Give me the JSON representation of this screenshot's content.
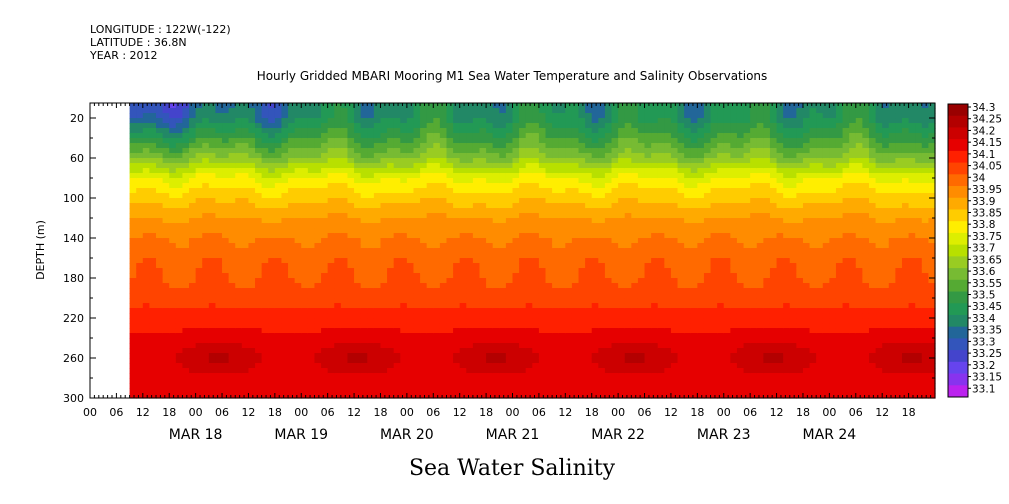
{
  "header": {
    "longitude": "LONGITUDE : 122W(-122)",
    "latitude": "LATITUDE : 36.8N",
    "year": "YEAR : 2012"
  },
  "chart_data": {
    "type": "heatmap",
    "title": "Hourly Gridded MBARI Mooring M1 Sea Water Temperature and Salinity Observations",
    "subtitle": "Sea Water Salinity",
    "ylabel": "DEPTH (m)",
    "xlabel": "",
    "x_range_hours": [
      -24,
      168
    ],
    "data_start_hour": -15,
    "y_range": [
      5,
      300
    ],
    "y_inverted": true,
    "y_ticks": [
      20,
      60,
      100,
      140,
      180,
      220,
      260,
      300
    ],
    "x_hour_ticks": [
      {
        "hour": -24,
        "label": "00"
      },
      {
        "hour": -18,
        "label": "06"
      },
      {
        "hour": -12,
        "label": "12"
      },
      {
        "hour": -6,
        "label": "18"
      },
      {
        "hour": 0,
        "label": "00"
      },
      {
        "hour": 6,
        "label": "06"
      },
      {
        "hour": 12,
        "label": "12"
      },
      {
        "hour": 18,
        "label": "18"
      },
      {
        "hour": 24,
        "label": "00"
      },
      {
        "hour": 30,
        "label": "06"
      },
      {
        "hour": 36,
        "label": "12"
      },
      {
        "hour": 42,
        "label": "18"
      },
      {
        "hour": 48,
        "label": "00"
      },
      {
        "hour": 54,
        "label": "06"
      },
      {
        "hour": 60,
        "label": "12"
      },
      {
        "hour": 66,
        "label": "18"
      },
      {
        "hour": 72,
        "label": "00"
      },
      {
        "hour": 78,
        "label": "06"
      },
      {
        "hour": 84,
        "label": "12"
      },
      {
        "hour": 90,
        "label": "18"
      },
      {
        "hour": 96,
        "label": "00"
      },
      {
        "hour": 102,
        "label": "06"
      },
      {
        "hour": 108,
        "label": "12"
      },
      {
        "hour": 114,
        "label": "18"
      },
      {
        "hour": 120,
        "label": "00"
      },
      {
        "hour": 126,
        "label": "06"
      },
      {
        "hour": 132,
        "label": "12"
      },
      {
        "hour": 138,
        "label": "18"
      },
      {
        "hour": 144,
        "label": "00"
      },
      {
        "hour": 150,
        "label": "06"
      },
      {
        "hour": 156,
        "label": "12"
      },
      {
        "hour": 162,
        "label": "18"
      }
    ],
    "day_labels": [
      {
        "hour": 0,
        "label": "MAR 18"
      },
      {
        "hour": 24,
        "label": "MAR 19"
      },
      {
        "hour": 48,
        "label": "MAR 20"
      },
      {
        "hour": 72,
        "label": "MAR 21"
      },
      {
        "hour": 96,
        "label": "MAR 22"
      },
      {
        "hour": 120,
        "label": "MAR 23"
      },
      {
        "hour": 144,
        "label": "MAR 24"
      }
    ],
    "depth_profile": [
      {
        "depth": 5,
        "value": 33.45
      },
      {
        "depth": 20,
        "value": 33.46
      },
      {
        "depth": 40,
        "value": 33.55
      },
      {
        "depth": 60,
        "value": 33.65
      },
      {
        "depth": 80,
        "value": 33.8
      },
      {
        "depth": 100,
        "value": 33.88
      },
      {
        "depth": 120,
        "value": 33.95
      },
      {
        "depth": 140,
        "value": 34.0
      },
      {
        "depth": 160,
        "value": 34.03
      },
      {
        "depth": 180,
        "value": 34.05
      },
      {
        "depth": 200,
        "value": 34.08
      },
      {
        "depth": 220,
        "value": 34.12
      },
      {
        "depth": 240,
        "value": 34.17
      },
      {
        "depth": 260,
        "value": 34.22
      },
      {
        "depth": 280,
        "value": 34.18
      },
      {
        "depth": 300,
        "value": 34.15
      }
    ],
    "colorbar": {
      "levels": [
        "34.3",
        "34.25",
        "34.2",
        "34.15",
        "34.1",
        "34.05",
        "34",
        "33.95",
        "33.9",
        "33.85",
        "33.8",
        "33.75",
        "33.7",
        "33.65",
        "33.6",
        "33.55",
        "33.5",
        "33.45",
        "33.4",
        "33.35",
        "33.3",
        "33.25",
        "33.2",
        "33.15",
        "33.1"
      ],
      "colors": [
        "#990000",
        "#b30000",
        "#cc0000",
        "#e60000",
        "#ff2000",
        "#ff4400",
        "#ff6a00",
        "#ff8c00",
        "#ffaa00",
        "#ffcc00",
        "#ffee00",
        "#ddee00",
        "#b8e000",
        "#99cc22",
        "#77bb33",
        "#55aa33",
        "#339944",
        "#229955",
        "#228866",
        "#226699",
        "#3355bb",
        "#4444cc",
        "#6644ee",
        "#8833ee",
        "#bb22ee"
      ]
    }
  }
}
